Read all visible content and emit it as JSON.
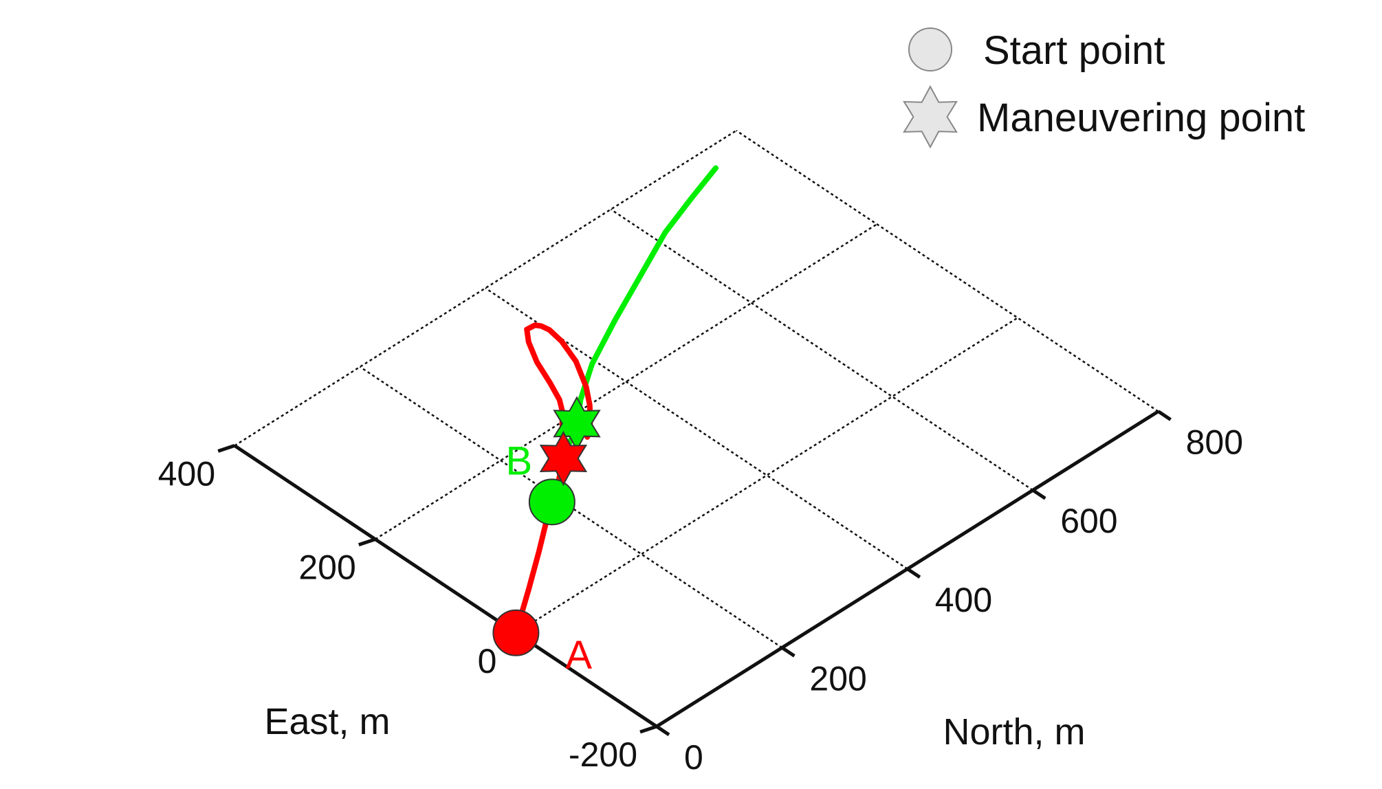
{
  "chart_data": {
    "type": "line",
    "projection": "3d-isometric",
    "xlabel": "North, m",
    "ylabel": "East, m",
    "xlim": [
      0,
      800
    ],
    "ylim": [
      -200,
      400
    ],
    "x_ticks": [
      "0",
      "200",
      "400",
      "600",
      "800"
    ],
    "y_ticks": [
      "-200",
      "0",
      "200",
      "400"
    ],
    "grid": true,
    "legend_position": "top-right",
    "legend": [
      {
        "marker": "circle",
        "label": "Start point"
      },
      {
        "marker": "star",
        "label": "Maneuvering point"
      }
    ],
    "series": [
      {
        "label": "A",
        "color": "#ff0000",
        "points": [
          [
            0,
            0
          ],
          [
            64,
            39
          ],
          [
            120,
            74
          ],
          [
            160,
            100
          ],
          [
            191,
            119
          ],
          [
            223,
            138
          ],
          [
            254,
            159
          ],
          [
            269,
            171
          ],
          [
            297,
            199
          ],
          [
            310,
            210
          ],
          [
            323,
            226
          ],
          [
            336,
            251
          ],
          [
            351,
            283
          ],
          [
            369,
            311
          ],
          [
            383,
            326
          ],
          [
            395,
            325
          ],
          [
            399,
            320
          ],
          [
            401,
            310
          ],
          [
            397,
            289
          ],
          [
            384,
            257
          ],
          [
            361,
            222
          ],
          [
            341,
            199
          ],
          [
            318,
            178
          ],
          [
            300,
            166
          ]
        ],
        "start": [
          0,
          0
        ],
        "maneuver": [
          254,
          159
        ]
      },
      {
        "label": "B",
        "color": "#00ee00",
        "points": [
          [
            191,
            119
          ],
          [
            223,
            138
          ],
          [
            254,
            159
          ],
          [
            272,
            169
          ],
          [
            289,
            177
          ],
          [
            308,
            188
          ],
          [
            341,
            212
          ],
          [
            394,
            243
          ],
          [
            466,
            275
          ],
          [
            512,
            294
          ],
          [
            575,
            320
          ],
          [
            616,
            337
          ],
          [
            681,
            357
          ],
          [
            737,
            373
          ]
        ],
        "start": [
          191,
          119
        ],
        "maneuver": [
          308,
          188
        ]
      }
    ]
  }
}
